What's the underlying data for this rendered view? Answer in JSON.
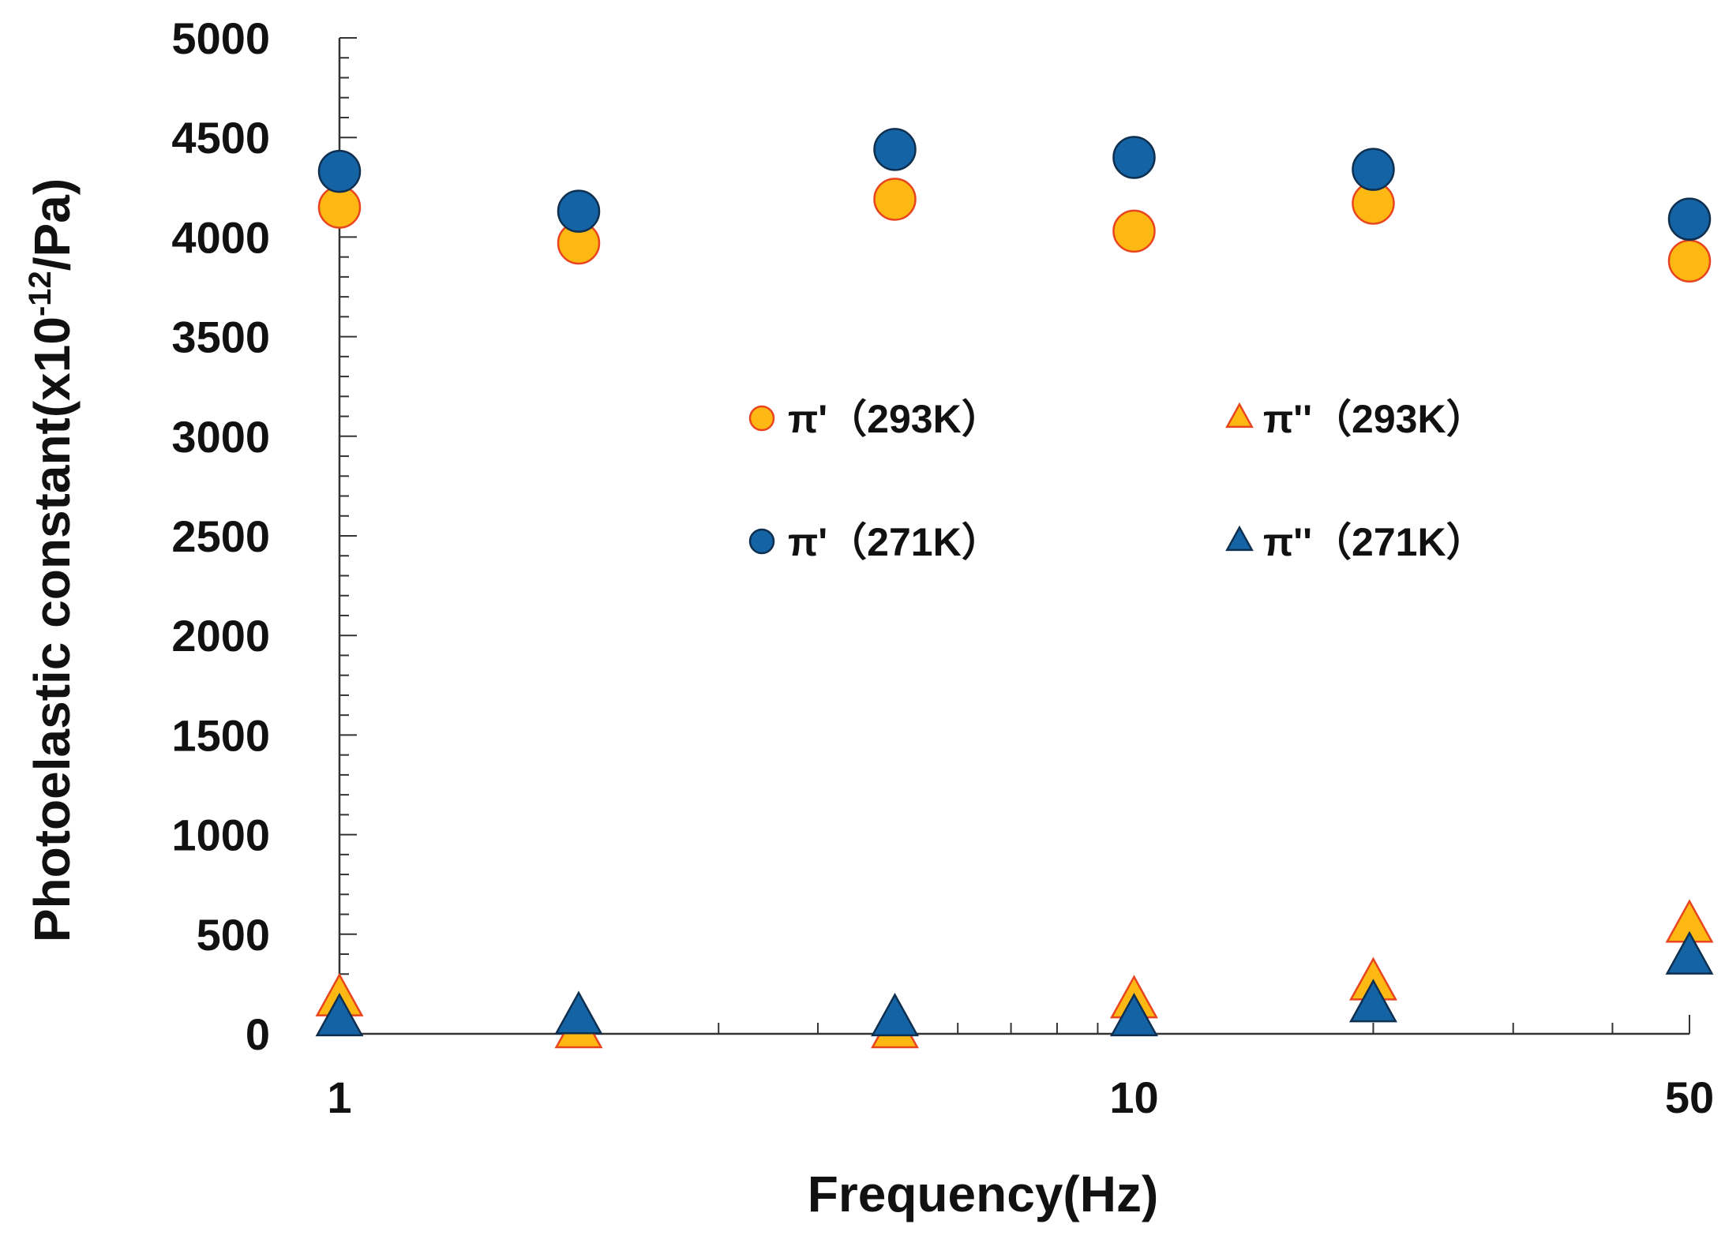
{
  "chart_data": {
    "type": "scatter",
    "title": "",
    "xlabel": "Frequency(Hz)",
    "ylabel": "Photoelastic constant(x10",
    "ylabel_sup": "-12",
    "ylabel_suffix": "/Pa)",
    "xscale": "log",
    "xlim": [
      1,
      50
    ],
    "ylim": [
      0,
      5000
    ],
    "x_ticks": [
      1,
      10,
      50
    ],
    "x_tick_labels": [
      "1",
      "10",
      "50"
    ],
    "y_ticks": [
      0,
      500,
      1000,
      1500,
      2000,
      2500,
      3000,
      3500,
      4000,
      4500,
      5000
    ],
    "y_tick_labels": [
      "0",
      "500",
      "1000",
      "1500",
      "2000",
      "2500",
      "3000",
      "3500",
      "4000",
      "4500",
      "5000"
    ],
    "grid": false,
    "legend_position": "center",
    "series": [
      {
        "name": "π'（293K）",
        "marker": "circle",
        "fill": "#FDB813",
        "stroke": "#E8451F",
        "x": [
          1,
          2,
          5,
          10,
          20,
          50
        ],
        "y": [
          4150,
          3970,
          4190,
          4030,
          4170,
          3880
        ]
      },
      {
        "name": "π'（271K）",
        "marker": "circle",
        "fill": "#1464A5",
        "stroke": "#0E2F4F",
        "x": [
          1,
          2,
          5,
          10,
          20,
          50
        ],
        "y": [
          4330,
          4130,
          4440,
          4400,
          4340,
          4090
        ]
      },
      {
        "name": "π''（293K）",
        "marker": "triangle",
        "fill": "#FDB813",
        "stroke": "#E8451F",
        "x": [
          1,
          2,
          5,
          10,
          20,
          50
        ],
        "y": [
          170,
          10,
          10,
          160,
          250,
          540
        ]
      },
      {
        "name": "π''（271K）",
        "marker": "triangle",
        "fill": "#1464A5",
        "stroke": "#0E2F4F",
        "x": [
          1,
          2,
          5,
          10,
          20,
          50
        ],
        "y": [
          70,
          80,
          70,
          70,
          140,
          380
        ]
      }
    ],
    "legend_entries": [
      "π'（293K）",
      "π''（293K）",
      "π'（271K）",
      "π''（271K）"
    ]
  }
}
